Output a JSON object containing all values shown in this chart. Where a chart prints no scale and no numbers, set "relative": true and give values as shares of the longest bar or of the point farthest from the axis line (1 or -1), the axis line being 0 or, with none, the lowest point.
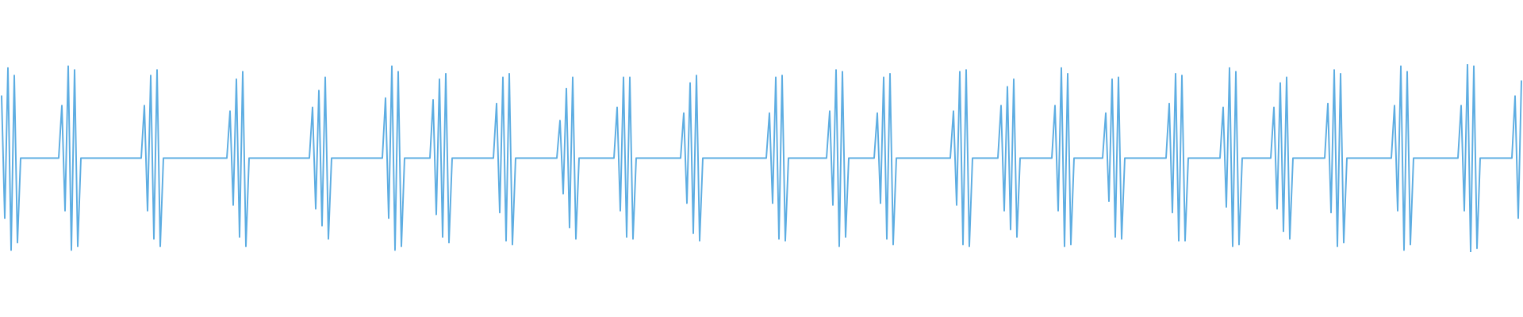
{
  "chart_data": {
    "type": "line",
    "relative": true,
    "categories": [
      null,
      null,
      null,
      null,
      null,
      null,
      null,
      null,
      null,
      null,
      null,
      null,
      null,
      null,
      null,
      null,
      null,
      null,
      null,
      null,
      null,
      null,
      null,
      null,
      null,
      null,
      null,
      null,
      null,
      null,
      null,
      null,
      null,
      null,
      null,
      null,
      null,
      null,
      null,
      null,
      null,
      null,
      null,
      null,
      null,
      null,
      null,
      null,
      null,
      null,
      null,
      null,
      null,
      null,
      null,
      null,
      null,
      null,
      null,
      null,
      null,
      null,
      null,
      null,
      null,
      null,
      null,
      null,
      null,
      null,
      null,
      null,
      null,
      null,
      null,
      null,
      null,
      null,
      null,
      null,
      null,
      null,
      null,
      null,
      null,
      null,
      null,
      null,
      null,
      null,
      null,
      null,
      null,
      null,
      null,
      null,
      null,
      null,
      null,
      null,
      null,
      null,
      null,
      null,
      null,
      null,
      null,
      null,
      null,
      null,
      null,
      null,
      null,
      null,
      null,
      null,
      null,
      null,
      null,
      null,
      null,
      null,
      null,
      null,
      null,
      null,
      null,
      null,
      null,
      null,
      null,
      null,
      null,
      null,
      null,
      null,
      null,
      null,
      null,
      null,
      null,
      null,
      null,
      null,
      null,
      null,
      null,
      null,
      null,
      null,
      null,
      null,
      null,
      null,
      null,
      null,
      null,
      null,
      null,
      null,
      null,
      null,
      null,
      null,
      null,
      null,
      null,
      null,
      null,
      null,
      null,
      null,
      null,
      null,
      null,
      null,
      null,
      null,
      null,
      null,
      null,
      null,
      null,
      null,
      null,
      null,
      null,
      null,
      null,
      null,
      null,
      null,
      null,
      null,
      null,
      null,
      null,
      null,
      null,
      null,
      null,
      null,
      null,
      null,
      null,
      null,
      null,
      null,
      null,
      null,
      null,
      null,
      null,
      null,
      null,
      null,
      null,
      null,
      null,
      null,
      null,
      null,
      null,
      null,
      null,
      null,
      null,
      null,
      null,
      null,
      null,
      null,
      null,
      null,
      null,
      null,
      null,
      null,
      null,
      null,
      null,
      null,
      null,
      null,
      null,
      null,
      null,
      null,
      null,
      null,
      null,
      null,
      null,
      null,
      null,
      null,
      null,
      null,
      null,
      null,
      null,
      null,
      null,
      null,
      null,
      null,
      null,
      null,
      null,
      null,
      null,
      null,
      null,
      null,
      null,
      null,
      null,
      null,
      null,
      null,
      null,
      null,
      null,
      null,
      null,
      null,
      null,
      null,
      null,
      null,
      null,
      null,
      null,
      null,
      null,
      null,
      null,
      null,
      null,
      null,
      null,
      null,
      null,
      null,
      null,
      null,
      null,
      null,
      null,
      null,
      null,
      null,
      null,
      null,
      null,
      null,
      null,
      null,
      null,
      null,
      null,
      null,
      null,
      null,
      null,
      null,
      null,
      null,
      null,
      null,
      null,
      null,
      null,
      null,
      null,
      null,
      null,
      null,
      null,
      null,
      null,
      null,
      null,
      null,
      null,
      null,
      null,
      null,
      null,
      null,
      null,
      null,
      null,
      null,
      null,
      null,
      null,
      null,
      null,
      null,
      null,
      null,
      null,
      null,
      null,
      null,
      null,
      null,
      null,
      null,
      null,
      null,
      null,
      null,
      null,
      null,
      null,
      null,
      null,
      null,
      null,
      null,
      null,
      null,
      null,
      null,
      null,
      null,
      null,
      null,
      null,
      null,
      null,
      null,
      null,
      null,
      null,
      null,
      null,
      null,
      null,
      null,
      null,
      null,
      null,
      null,
      null,
      null,
      null,
      null,
      null,
      null,
      null,
      null,
      null,
      null,
      null,
      null,
      null,
      null,
      null,
      null,
      null,
      null,
      null,
      null,
      null,
      null,
      null,
      null,
      null,
      null,
      null,
      null,
      null,
      null,
      null,
      null,
      null,
      null,
      null,
      null,
      null,
      null,
      null,
      null,
      null,
      null,
      null,
      null,
      null,
      null,
      null,
      null,
      null,
      null,
      null,
      null,
      null,
      null,
      null,
      null,
      null,
      null,
      null,
      null,
      null,
      null,
      null,
      null,
      null,
      null,
      null,
      null,
      null,
      null,
      null,
      null,
      null,
      null
    ],
    "series": [
      {
        "color": "#5dade2",
        "values": [
          0.83,
          0.18,
          0.98,
          0.01,
          0.94,
          0.05,
          0.5,
          0.5,
          0.5,
          0.5,
          0.5,
          0.5,
          0.5,
          0.5,
          0.5,
          0.5,
          0.5,
          0.5,
          0.5,
          0.78,
          0.22,
          0.99,
          0.01,
          0.97,
          0.03,
          0.5,
          0.5,
          0.5,
          0.5,
          0.5,
          0.5,
          0.5,
          0.5,
          0.5,
          0.5,
          0.5,
          0.5,
          0.5,
          0.5,
          0.5,
          0.5,
          0.5,
          0.5,
          0.5,
          0.5,
          0.78,
          0.22,
          0.94,
          0.07,
          0.97,
          0.03,
          0.5,
          0.5,
          0.5,
          0.5,
          0.5,
          0.5,
          0.5,
          0.5,
          0.5,
          0.5,
          0.5,
          0.5,
          0.5,
          0.5,
          0.5,
          0.5,
          0.5,
          0.5,
          0.5,
          0.5,
          0.5,
          0.75,
          0.25,
          0.92,
          0.08,
          0.96,
          0.03,
          0.5,
          0.5,
          0.5,
          0.5,
          0.5,
          0.5,
          0.5,
          0.5,
          0.5,
          0.5,
          0.5,
          0.5,
          0.5,
          0.5,
          0.5,
          0.5,
          0.5,
          0.5,
          0.5,
          0.5,
          0.77,
          0.23,
          0.86,
          0.14,
          0.93,
          0.07,
          0.5,
          0.5,
          0.5,
          0.5,
          0.5,
          0.5,
          0.5,
          0.5,
          0.5,
          0.5,
          0.5,
          0.5,
          0.5,
          0.5,
          0.5,
          0.5,
          0.5,
          0.82,
          0.18,
          0.99,
          0.01,
          0.96,
          0.03,
          0.5,
          0.5,
          0.5,
          0.5,
          0.5,
          0.5,
          0.5,
          0.5,
          0.5,
          0.81,
          0.2,
          0.92,
          0.08,
          0.95,
          0.05,
          0.5,
          0.5,
          0.5,
          0.5,
          0.5,
          0.5,
          0.5,
          0.5,
          0.5,
          0.5,
          0.5,
          0.5,
          0.5,
          0.5,
          0.79,
          0.21,
          0.93,
          0.06,
          0.95,
          0.04,
          0.5,
          0.5,
          0.5,
          0.5,
          0.5,
          0.5,
          0.5,
          0.5,
          0.5,
          0.5,
          0.5,
          0.5,
          0.5,
          0.5,
          0.7,
          0.31,
          0.87,
          0.13,
          0.93,
          0.07,
          0.5,
          0.5,
          0.5,
          0.5,
          0.5,
          0.5,
          0.5,
          0.5,
          0.5,
          0.5,
          0.5,
          0.5,
          0.77,
          0.22,
          0.93,
          0.08,
          0.93,
          0.07,
          0.5,
          0.5,
          0.5,
          0.5,
          0.5,
          0.5,
          0.5,
          0.5,
          0.5,
          0.5,
          0.5,
          0.5,
          0.5,
          0.5,
          0.5,
          0.74,
          0.26,
          0.9,
          0.1,
          0.94,
          0.06,
          0.5,
          0.5,
          0.5,
          0.5,
          0.5,
          0.5,
          0.5,
          0.5,
          0.5,
          0.5,
          0.5,
          0.5,
          0.5,
          0.5,
          0.5,
          0.5,
          0.5,
          0.5,
          0.5,
          0.5,
          0.5,
          0.74,
          0.26,
          0.93,
          0.07,
          0.94,
          0.06,
          0.5,
          0.5,
          0.5,
          0.5,
          0.5,
          0.5,
          0.5,
          0.5,
          0.5,
          0.5,
          0.5,
          0.5,
          0.5,
          0.75,
          0.25,
          0.97,
          0.03,
          0.96,
          0.08,
          0.5,
          0.5,
          0.5,
          0.5,
          0.5,
          0.5,
          0.5,
          0.5,
          0.5,
          0.74,
          0.26,
          0.93,
          0.07,
          0.95,
          0.04,
          0.5,
          0.5,
          0.5,
          0.5,
          0.5,
          0.5,
          0.5,
          0.5,
          0.5,
          0.5,
          0.5,
          0.5,
          0.5,
          0.5,
          0.5,
          0.5,
          0.5,
          0.5,
          0.75,
          0.25,
          0.96,
          0.04,
          0.97,
          0.03,
          0.5,
          0.5,
          0.5,
          0.5,
          0.5,
          0.5,
          0.5,
          0.5,
          0.5,
          0.78,
          0.22,
          0.88,
          0.12,
          0.92,
          0.08,
          0.5,
          0.5,
          0.5,
          0.5,
          0.5,
          0.5,
          0.5,
          0.5,
          0.5,
          0.5,
          0.5,
          0.78,
          0.22,
          0.98,
          0.03,
          0.95,
          0.04,
          0.5,
          0.5,
          0.5,
          0.5,
          0.5,
          0.5,
          0.5,
          0.5,
          0.5,
          0.5,
          0.74,
          0.27,
          0.92,
          0.08,
          0.93,
          0.07,
          0.5,
          0.5,
          0.5,
          0.5,
          0.5,
          0.5,
          0.5,
          0.5,
          0.5,
          0.5,
          0.5,
          0.5,
          0.5,
          0.5,
          0.79,
          0.21,
          0.95,
          0.06,
          0.94,
          0.06,
          0.5,
          0.5,
          0.5,
          0.5,
          0.5,
          0.5,
          0.5,
          0.5,
          0.5,
          0.5,
          0.5,
          0.77,
          0.24,
          0.98,
          0.03,
          0.96,
          0.04,
          0.5,
          0.5,
          0.5,
          0.5,
          0.5,
          0.5,
          0.5,
          0.5,
          0.5,
          0.5,
          0.77,
          0.23,
          0.9,
          0.11,
          0.93,
          0.07,
          0.5,
          0.5,
          0.5,
          0.5,
          0.5,
          0.5,
          0.5,
          0.5,
          0.5,
          0.5,
          0.5,
          0.79,
          0.21,
          0.97,
          0.03,
          0.95,
          0.05,
          0.5,
          0.5,
          0.5,
          0.5,
          0.5,
          0.5,
          0.5,
          0.5,
          0.5,
          0.5,
          0.5,
          0.5,
          0.5,
          0.5,
          0.5,
          0.78,
          0.22,
          0.99,
          0.01,
          0.96,
          0.04,
          0.5,
          0.5,
          0.5,
          0.5,
          0.5,
          0.5,
          0.5,
          0.5,
          0.5,
          0.5,
          0.5,
          0.5,
          0.5,
          0.5,
          0.5,
          0.78,
          0.22,
          1,
          0,
          0.99,
          0.02,
          0.5,
          0.5,
          0.5,
          0.5,
          0.5,
          0.5,
          0.5,
          0.5,
          0.5,
          0.5,
          0.5,
          0.83,
          0.18,
          0.91
        ]
      }
    ]
  }
}
